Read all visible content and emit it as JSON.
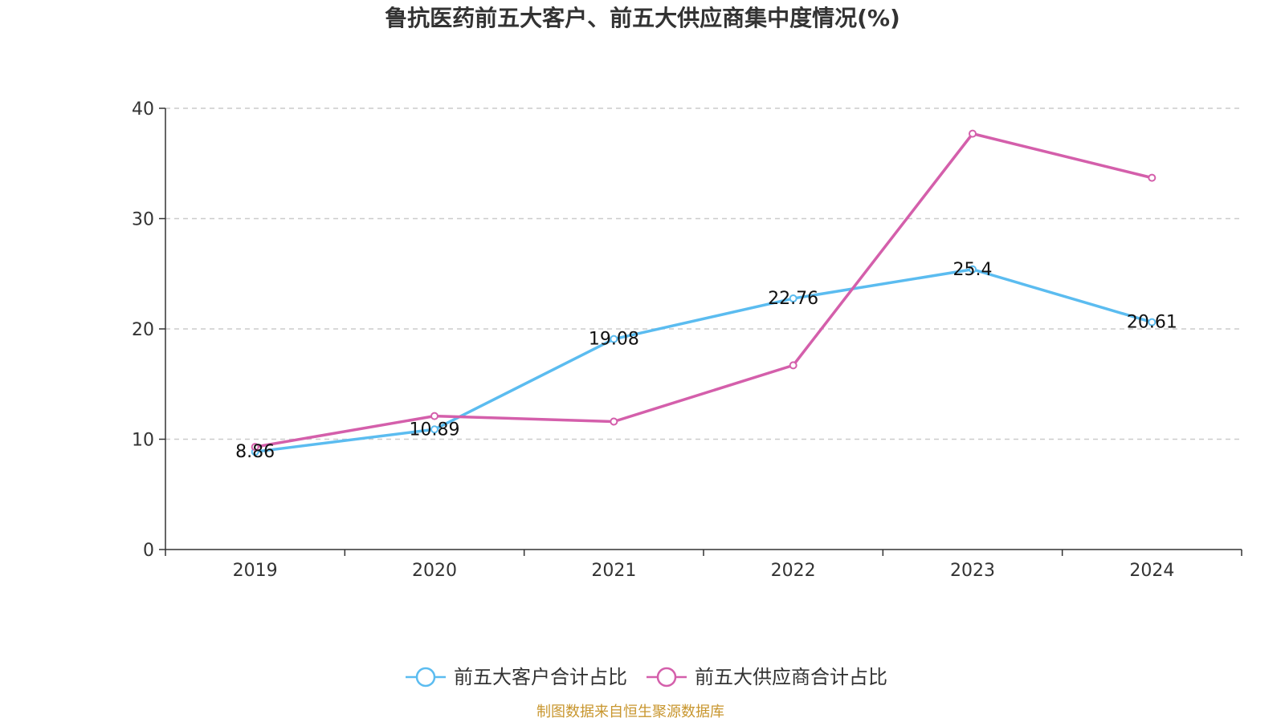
{
  "chart_data": {
    "type": "line",
    "title": "鲁抗医药前五大客户、前五大供应商集中度情况(%)",
    "categories": [
      "2019",
      "2020",
      "2021",
      "2022",
      "2023",
      "2024"
    ],
    "ylim": [
      0,
      40
    ],
    "yticks": [
      "0",
      "10",
      "20",
      "30",
      "40"
    ],
    "grid": true,
    "legend_position": "bottom",
    "series": [
      {
        "name": "前五大客户合计占比",
        "color": "#5bbcf0",
        "values": [
          8.86,
          10.89,
          19.08,
          22.76,
          25.4,
          20.61
        ],
        "labels": [
          "8.86",
          "10.89",
          "19.08",
          "22.76",
          "25.4",
          "20.61"
        ],
        "show_labels": true
      },
      {
        "name": "前五大供应商合计占比",
        "color": "#d45fab",
        "values": [
          9.3,
          12.1,
          11.6,
          16.7,
          37.7,
          33.7
        ],
        "show_labels": false
      }
    ],
    "source": "制图数据来自恒生聚源数据库"
  }
}
